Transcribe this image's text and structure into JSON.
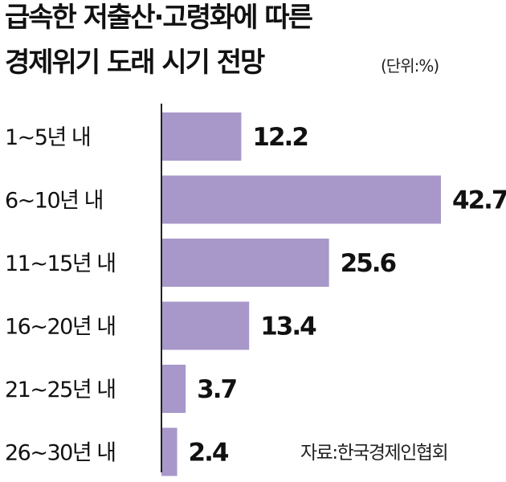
{
  "title": [
    "급속한 저출산·고령화에 따른",
    "경제위기 도래 시기 전망"
  ],
  "unit": "(단위:%)",
  "source": "자료:한국경제인협회",
  "colors": {
    "bar": "#a898c9",
    "axis": "#222222",
    "text": "#111111"
  },
  "chart_data": {
    "type": "bar",
    "orientation": "horizontal",
    "categories": [
      "1~5년 내",
      "6~10년 내",
      "11~15년 내",
      "16~20년 내",
      "21~25년 내",
      "26~30년 내"
    ],
    "values": [
      12.2,
      42.7,
      25.6,
      13.4,
      3.7,
      2.4
    ],
    "value_labels": [
      "12.2",
      "42.7",
      "25.6",
      "13.4",
      "3.7",
      "2.4"
    ],
    "title": "급속한 저출산·고령화에 따른 경제위기 도래 시기 전망",
    "unit": "%",
    "grid": false,
    "legend": "none"
  }
}
